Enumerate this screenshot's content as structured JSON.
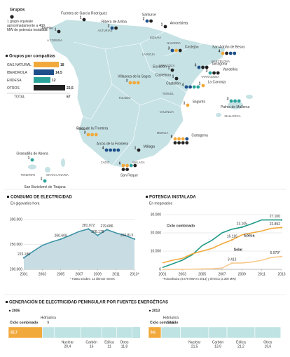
{
  "map": {
    "legend_title": "Grupos",
    "legend_note": "1 grupo equivale aproximadamente a 400 MW de potencia instalada",
    "regions": [
      "A CORUÑA",
      "ASTURIAS",
      "BIZKAIA",
      "NAVARRA",
      "LA RIOJA",
      "ZARAGOZA",
      "TERUEL",
      "TARRAGONA",
      "BARCELONA",
      "VALENCIA",
      "MURCIA",
      "MALLORCA",
      "TOLEDO",
      "HUELVA",
      "CÁDIZ",
      "MÁLAGA",
      "TENERIFE",
      "GRAN CANARIA"
    ],
    "sites": [
      {
        "name": "Ameixo",
        "n": 1,
        "colors": [
          "#222222"
        ]
      },
      {
        "name": "Fuentes de García Rodríguez",
        "n": 1,
        "colors": [
          "#222222"
        ]
      },
      {
        "name": "Ribera de Arriba",
        "n": 2,
        "colors": [
          "#1e4f8a",
          "#222222"
        ]
      },
      {
        "name": "Santurce",
        "n": 2,
        "colors": [
          "#1e4f8a",
          "#222222"
        ]
      },
      {
        "name": "Amorebieta",
        "n": 1,
        "colors": [
          "#222222"
        ]
      },
      {
        "name": "Castejón",
        "n": 3,
        "colors": [
          "#1e4f8a",
          "#f2a93b",
          "#222222"
        ]
      },
      {
        "name": "Escatrón",
        "n": 1,
        "colors": [
          "#222222"
        ]
      },
      {
        "name": "Castelnou",
        "n": 1,
        "colors": [
          "#222222"
        ]
      },
      {
        "name": "Tarragona",
        "n": 3,
        "colors": [
          "#1e4f8a",
          "#222222",
          "#222222"
        ]
      },
      {
        "name": "San Adrián de Besos",
        "n": 4,
        "colors": [
          "#f2a93b",
          "#222222",
          "#1e4f8a",
          "#1e4f8a"
        ]
      },
      {
        "name": "La Canonja",
        "n": 1,
        "colors": [
          "#f2a93b"
        ]
      },
      {
        "name": "Vandellós",
        "n": 3,
        "colors": [
          "#2aa39b",
          "#222222",
          "#222222"
        ]
      },
      {
        "name": "Castellón",
        "n": 4,
        "colors": [
          "#1e4f8a",
          "#1e4f8a",
          "#2aa39b",
          "#2aa39b"
        ]
      },
      {
        "name": "Sagunto",
        "n": 1,
        "colors": [
          "#f2a93b"
        ]
      },
      {
        "name": "Palma de Mallorca",
        "n": 3,
        "colors": [
          "#2aa39b",
          "#2aa39b",
          "#2aa39b"
        ]
      },
      {
        "name": "Villaseca de la Sagra",
        "n": 3,
        "colors": [
          "#f2a93b",
          "#f2a93b",
          "#f2a93b"
        ]
      },
      {
        "name": "Cartagena",
        "n": 8,
        "colors": [
          "#f2a93b",
          "#f2a93b",
          "#f2a93b",
          "#1e4f8a",
          "#222222",
          "#222222",
          "#222222",
          "#222222"
        ]
      },
      {
        "name": "Palos de la Frontera",
        "n": 3,
        "colors": [
          "#f2a93b",
          "#f2a93b",
          "#f2a93b"
        ]
      },
      {
        "name": "Arcos de la Frontera",
        "n": 4,
        "colors": [
          "#1e4f8a",
          "#1e4f8a",
          "#1e4f8a",
          "#1e4f8a"
        ]
      },
      {
        "name": "San Roque",
        "n": 6,
        "colors": [
          "#f2a93b",
          "#f2a93b",
          "#2aa39b",
          "#222222",
          "#222222",
          "#222222"
        ]
      },
      {
        "name": "Málaga",
        "n": 1,
        "colors": [
          "#222222"
        ]
      },
      {
        "name": "Granadilla de Abona",
        "n": 1,
        "colors": [
          "#2aa39b"
        ]
      },
      {
        "name": "San Bartolomé de Tirajana",
        "n": 1,
        "colors": [
          "#2aa39b"
        ]
      }
    ]
  },
  "chart_data": [
    {
      "type": "bar",
      "title": "Grupos por compañías",
      "categories": [
        "GAS NATURAL",
        "IBERDROLA",
        "ENDESA",
        "OTROS"
      ],
      "values": [
        18,
        14.5,
        12,
        22.5
      ],
      "value_labels": [
        "18",
        "14,5",
        "12",
        "22,5"
      ],
      "colors": [
        "#f2a93b",
        "#1e4f8a",
        "#2aa39b",
        "#222222"
      ],
      "total": {
        "label": "TOTAL",
        "value": 67
      }
    },
    {
      "type": "area",
      "title": "CONSUMO DE ELECTRICIDAD",
      "subtitle": "En gigavatios hora",
      "note": "* Hasta octubre. 12 últimos meses",
      "x": [
        2001,
        2002,
        2003,
        2004,
        2005,
        2006,
        2007,
        2008,
        2009,
        2010,
        2011,
        2012,
        2013
      ],
      "values": [
        223186,
        236000,
        248000,
        255000,
        260609,
        268000,
        276000,
        281072,
        268178,
        279686,
        273000,
        268000,
        260813
      ],
      "value_labels": [
        "223.186",
        null,
        null,
        null,
        "260.609",
        null,
        null,
        "281.072",
        "268.178",
        "279.686",
        null,
        null,
        "260.813"
      ],
      "color": "#3e93a8",
      "fill": "#c8dde3",
      "xlim": [
        2001,
        2013
      ],
      "xticks": [
        2001,
        2003,
        2005,
        2007,
        2009,
        2011,
        {
          "value": 2013,
          "label": "2013*"
        }
      ],
      "ylim": [
        200000,
        300000
      ],
      "yticks": [
        {
          "value": 200000,
          "label": "200.000"
        },
        {
          "value": 250000,
          "label": "250.000"
        },
        {
          "value": 300000,
          "label": "300.000"
        }
      ],
      "grid": true
    },
    {
      "type": "line",
      "title": "POTENCIA INSTALADA",
      "subtitle": "En megavatios",
      "note": "*Fotovoltaica (4.679 MW en 2013) y térmica (2.300 MW)",
      "x": [
        2001,
        2002,
        2003,
        2004,
        2005,
        2006,
        2007,
        2008,
        2009,
        2010,
        2011,
        2012,
        2013
      ],
      "series": [
        {
          "name": "Ciclo combinado",
          "color": "#1f9a87",
          "values": [
            1000,
            3000,
            5000,
            8000,
            13000,
            16000,
            20000,
            22000,
            23105,
            25000,
            27100,
            27100,
            27100
          ],
          "value_labels": [
            null,
            null,
            null,
            null,
            null,
            null,
            null,
            null,
            "23.105",
            null,
            null,
            null,
            "27.100"
          ]
        },
        {
          "name": "Eólica",
          "color": "#f2a93b",
          "values": [
            3500,
            5000,
            6000,
            8500,
            10000,
            11500,
            14000,
            16116,
            18900,
            20000,
            21000,
            22500,
            22892
          ],
          "value_labels": [
            null,
            null,
            null,
            null,
            null,
            null,
            null,
            "16.116",
            null,
            null,
            null,
            null,
            "22.892"
          ]
        },
        {
          "name": "Solar",
          "color": "#f7c98c",
          "values": [
            0,
            0,
            0,
            100,
            200,
            300,
            700,
            3413,
            3500,
            4000,
            5000,
            6500,
            6979
          ],
          "value_labels": [
            null,
            null,
            null,
            null,
            null,
            null,
            null,
            "3.413",
            null,
            null,
            null,
            null,
            "6.979*"
          ]
        }
      ],
      "xlim": [
        2001,
        2013
      ],
      "xticks": [
        2001,
        2003,
        2005,
        2007,
        2009,
        2011,
        2013
      ],
      "ylim": [
        0,
        30000
      ],
      "yticks": [
        0,
        {
          "value": 10000,
          "label": "10.000"
        },
        {
          "value": 20000,
          "label": "20.000"
        },
        {
          "value": 30000,
          "label": "30.000"
        }
      ],
      "grid": true
    },
    {
      "type": "stacked-bar",
      "title": "GENERACIÓN DE ELECTRICIDAD PENINSULAR POR FUENTES ENERGÉTICAS",
      "categories": [
        "2006",
        "2013"
      ],
      "xlim": [
        0,
        100
      ],
      "series": [
        {
          "name": "Ciclo combinado",
          "color": "#f2a93b",
          "values": [
            25.7,
            9.6
          ],
          "value_labels": [
            "25,7",
            "9,6"
          ]
        },
        {
          "name": "Hidráulica",
          "color": "#bfe3e3",
          "values": [
            9,
            14.6
          ],
          "value_labels": [
            "9",
            "14,6"
          ]
        },
        {
          "name": "Nuclear",
          "color": "#bfe3e3",
          "values": [
            20.4,
            21.5
          ],
          "value_labels": [
            "20,4",
            "21,5"
          ]
        },
        {
          "name": "Carbón",
          "color": "#bfe3e3",
          "values": [
            16,
            13.9
          ],
          "value_labels": [
            "16",
            "13,9"
          ]
        },
        {
          "name": "Eólica",
          "color": "#bfe3e3",
          "values": [
            11,
            21.2
          ],
          "value_labels": [
            "11",
            "21,2"
          ]
        },
        {
          "name": "Otros",
          "color": "#bfe3e3",
          "values": [
            11.8,
            19.6
          ],
          "value_labels": [
            "11,8",
            "19,6"
          ]
        }
      ]
    }
  ]
}
